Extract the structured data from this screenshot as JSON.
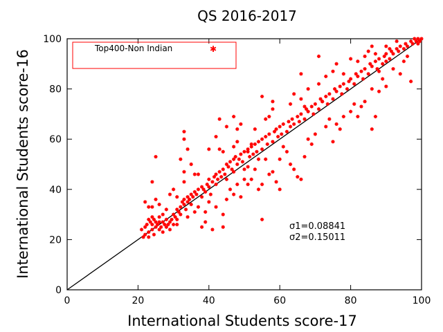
{
  "chart_data": {
    "type": "scatter",
    "title": "QS 2016-2017",
    "xlabel": "International Students score-17",
    "ylabel": "International Students score-16",
    "xlim": [
      0,
      100
    ],
    "ylim": [
      0,
      100
    ],
    "xticks": [
      0,
      20,
      40,
      60,
      80,
      100
    ],
    "yticks": [
      0,
      20,
      40,
      60,
      80,
      100
    ],
    "grid": false,
    "legend_position": "top-left",
    "reference_line": {
      "from": [
        0,
        0
      ],
      "to": [
        100,
        100
      ],
      "color": "#000000"
    },
    "annotations": [
      "σ1=0.08841",
      "σ2=0.15011"
    ],
    "series": [
      {
        "name": "Top400-Non Indian",
        "color": "#ff0000",
        "marker": "star",
        "points": [
          [
            21,
            24
          ],
          [
            21.5,
            21
          ],
          [
            22,
            22
          ],
          [
            22,
            25
          ],
          [
            22.5,
            26
          ],
          [
            23,
            21
          ],
          [
            23,
            23
          ],
          [
            23,
            28
          ],
          [
            23.5,
            27
          ],
          [
            24,
            26
          ],
          [
            24,
            24
          ],
          [
            24.5,
            28
          ],
          [
            24.5,
            22
          ],
          [
            25,
            27
          ],
          [
            25,
            25
          ],
          [
            25.5,
            26
          ],
          [
            26,
            24
          ],
          [
            26,
            27
          ],
          [
            26.5,
            25
          ],
          [
            27,
            27
          ],
          [
            27,
            23
          ],
          [
            27.5,
            26
          ],
          [
            28,
            25
          ],
          [
            28,
            28
          ],
          [
            28.5,
            26
          ],
          [
            29,
            27
          ],
          [
            29,
            24
          ],
          [
            29.5,
            28
          ],
          [
            30,
            30
          ],
          [
            30,
            26
          ],
          [
            30.5,
            29
          ],
          [
            31,
            32
          ],
          [
            31,
            28
          ],
          [
            31.5,
            31
          ],
          [
            32,
            33
          ],
          [
            32,
            30
          ],
          [
            32.5,
            35
          ],
          [
            33,
            34
          ],
          [
            33,
            36
          ],
          [
            33.5,
            32
          ],
          [
            34,
            35
          ],
          [
            34,
            37
          ],
          [
            34.5,
            36
          ],
          [
            35,
            34
          ],
          [
            35,
            38
          ],
          [
            35.5,
            37
          ],
          [
            36,
            39
          ],
          [
            36.5,
            38
          ],
          [
            37,
            40
          ],
          [
            38,
            37
          ],
          [
            38,
            41
          ],
          [
            38.5,
            40
          ],
          [
            39,
            39
          ],
          [
            39.5,
            42
          ],
          [
            40,
            41
          ],
          [
            40,
            44
          ],
          [
            40.5,
            38
          ],
          [
            41,
            43
          ],
          [
            41.5,
            45
          ],
          [
            42,
            42
          ],
          [
            42,
            46
          ],
          [
            42.5,
            44
          ],
          [
            43,
            47
          ],
          [
            43.5,
            45
          ],
          [
            44,
            48
          ],
          [
            44.5,
            46
          ],
          [
            45,
            50
          ],
          [
            45,
            44
          ],
          [
            45.5,
            49
          ],
          [
            46,
            51
          ],
          [
            46.5,
            48
          ],
          [
            47,
            52
          ],
          [
            47,
            47
          ],
          [
            47.5,
            53
          ],
          [
            48,
            50
          ],
          [
            48.5,
            52
          ],
          [
            49,
            54
          ],
          [
            49.5,
            51
          ],
          [
            50,
            55
          ],
          [
            50,
            48
          ],
          [
            51,
            56
          ],
          [
            51.5,
            53
          ],
          [
            52,
            57
          ],
          [
            52.5,
            54
          ],
          [
            53,
            58
          ],
          [
            53.5,
            55
          ],
          [
            54,
            59
          ],
          [
            55,
            60
          ],
          [
            55,
            56
          ],
          [
            56,
            61
          ],
          [
            56.5,
            58
          ],
          [
            57,
            62
          ],
          [
            58,
            59
          ],
          [
            58.5,
            63
          ],
          [
            59,
            64
          ],
          [
            59.5,
            61
          ],
          [
            60,
            65
          ],
          [
            60.5,
            62
          ],
          [
            61,
            66
          ],
          [
            62,
            63
          ],
          [
            62.5,
            67
          ],
          [
            63,
            65
          ],
          [
            63.5,
            68
          ],
          [
            64,
            66
          ],
          [
            65,
            69
          ],
          [
            65.5,
            67
          ],
          [
            66,
            70
          ],
          [
            67,
            68
          ],
          [
            67.5,
            72
          ],
          [
            68,
            71
          ],
          [
            69,
            73
          ],
          [
            69.5,
            70
          ],
          [
            70,
            74
          ],
          [
            71,
            72
          ],
          [
            71.5,
            76
          ],
          [
            72,
            75
          ],
          [
            73,
            77
          ],
          [
            73.5,
            74
          ],
          [
            74,
            78
          ],
          [
            75,
            76
          ],
          [
            75.5,
            80
          ],
          [
            76,
            79
          ],
          [
            77,
            81
          ],
          [
            77.5,
            78
          ],
          [
            78,
            82
          ],
          [
            79,
            80
          ],
          [
            79.5,
            83
          ],
          [
            80,
            84
          ],
          [
            81,
            82
          ],
          [
            81.5,
            86
          ],
          [
            82,
            85
          ],
          [
            83,
            87
          ],
          [
            83.5,
            84
          ],
          [
            84,
            88
          ],
          [
            85,
            86
          ],
          [
            85.5,
            90
          ],
          [
            86,
            89
          ],
          [
            87,
            91
          ],
          [
            87.5,
            88
          ],
          [
            88,
            92
          ],
          [
            89,
            90
          ],
          [
            89.5,
            93
          ],
          [
            90,
            94
          ],
          [
            91,
            92
          ],
          [
            91.5,
            95
          ],
          [
            92,
            94
          ],
          [
            93,
            96
          ],
          [
            93.5,
            95
          ],
          [
            94,
            97
          ],
          [
            95,
            96
          ],
          [
            95.5,
            98
          ],
          [
            96,
            97
          ],
          [
            97,
            99
          ],
          [
            97.5,
            98
          ],
          [
            98,
            100
          ],
          [
            98.5,
            99
          ],
          [
            99,
            100
          ],
          [
            99.5,
            99
          ],
          [
            100,
            100
          ],
          [
            99,
            98
          ],
          [
            25,
            36
          ],
          [
            24,
            29
          ],
          [
            23,
            33
          ],
          [
            25,
            53
          ],
          [
            24,
            43
          ],
          [
            22,
            35
          ],
          [
            24,
            33
          ],
          [
            26,
            29
          ],
          [
            30,
            40
          ],
          [
            31,
            37
          ],
          [
            33,
            63
          ],
          [
            33,
            60
          ],
          [
            32,
            52
          ],
          [
            33,
            47
          ],
          [
            34,
            56
          ],
          [
            36,
            46
          ],
          [
            33,
            43
          ],
          [
            35,
            50
          ],
          [
            37,
            46
          ],
          [
            40,
            56
          ],
          [
            42,
            61
          ],
          [
            43,
            68
          ],
          [
            43,
            56
          ],
          [
            44,
            55
          ],
          [
            45,
            65
          ],
          [
            47,
            69
          ],
          [
            48,
            64
          ],
          [
            48,
            59
          ],
          [
            49,
            66
          ],
          [
            51,
            55
          ],
          [
            52,
            58
          ],
          [
            53,
            64
          ],
          [
            54,
            52
          ],
          [
            51,
            42
          ],
          [
            52,
            44
          ],
          [
            54,
            40
          ],
          [
            55,
            42
          ],
          [
            48,
            42
          ],
          [
            47,
            38
          ],
          [
            49,
            37
          ],
          [
            44,
            30
          ],
          [
            42,
            33
          ],
          [
            40,
            35
          ],
          [
            38,
            25
          ],
          [
            41,
            24
          ],
          [
            44,
            25
          ],
          [
            55,
            28
          ],
          [
            56,
            52
          ],
          [
            58,
            47
          ],
          [
            60,
            52
          ],
          [
            61,
            57
          ],
          [
            62,
            55
          ],
          [
            63,
            50
          ],
          [
            64,
            48
          ],
          [
            65,
            45
          ],
          [
            66,
            44
          ],
          [
            67,
            53
          ],
          [
            68,
            60
          ],
          [
            69,
            58
          ],
          [
            70,
            62
          ],
          [
            66,
            86
          ],
          [
            71,
            93
          ],
          [
            72,
            75
          ],
          [
            73,
            65
          ],
          [
            74,
            68
          ],
          [
            75,
            59
          ],
          [
            76,
            66
          ],
          [
            77,
            64
          ],
          [
            78,
            69
          ],
          [
            80,
            71
          ],
          [
            81,
            74
          ],
          [
            82,
            69
          ],
          [
            83,
            73
          ],
          [
            84,
            75
          ],
          [
            86,
            80
          ],
          [
            86,
            64
          ],
          [
            87,
            69
          ],
          [
            88,
            79
          ],
          [
            89,
            84
          ],
          [
            90,
            81
          ],
          [
            88,
            87
          ],
          [
            90,
            91
          ],
          [
            92,
            88
          ],
          [
            94,
            86
          ],
          [
            95,
            91
          ],
          [
            97,
            83
          ],
          [
            96,
            93
          ],
          [
            91,
            96
          ],
          [
            93,
            99
          ],
          [
            90,
            97
          ],
          [
            45,
            36
          ],
          [
            46,
            40
          ],
          [
            57,
            46
          ],
          [
            59,
            43
          ],
          [
            60,
            40
          ],
          [
            53,
            48
          ],
          [
            50,
            44
          ],
          [
            51,
            49
          ],
          [
            47,
            57
          ],
          [
            56,
            68
          ],
          [
            57,
            69
          ],
          [
            58,
            75
          ],
          [
            55,
            77
          ],
          [
            58,
            72
          ],
          [
            63,
            74
          ],
          [
            64,
            78
          ],
          [
            66,
            76
          ],
          [
            67,
            73
          ],
          [
            68,
            80
          ],
          [
            71,
            82
          ],
          [
            73,
            85
          ],
          [
            75,
            87
          ],
          [
            76,
            90
          ],
          [
            78,
            86
          ],
          [
            80,
            92
          ],
          [
            82,
            91
          ],
          [
            84,
            93
          ],
          [
            85,
            95
          ],
          [
            86,
            97
          ],
          [
            87,
            94
          ],
          [
            29,
            38
          ],
          [
            28,
            32
          ],
          [
            27,
            30
          ],
          [
            26,
            34
          ],
          [
            31,
            26
          ],
          [
            34,
            29
          ],
          [
            36,
            31
          ],
          [
            37,
            33
          ],
          [
            39,
            27
          ],
          [
            39,
            31
          ]
        ]
      }
    ]
  }
}
